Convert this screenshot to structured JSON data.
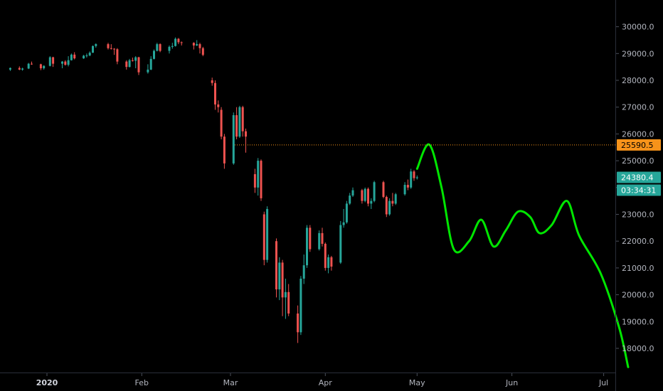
{
  "chart_data": {
    "type": "candlestick",
    "y_axis": {
      "ticks": [
        18000,
        19000,
        20000,
        21000,
        22000,
        23000,
        24000,
        25000,
        26000,
        27000,
        28000,
        29000,
        30000
      ],
      "tick_labels": [
        "18000.0",
        "19000.0",
        "20000.0",
        "21000.0",
        "22000.0",
        "23000.0",
        "24000.0",
        "25000.0",
        "26000.0",
        "27000.0",
        "28000.0",
        "29000.0",
        "30000.0"
      ],
      "range": [
        17100,
        30700
      ],
      "position": "right"
    },
    "x_axis": {
      "labels": [
        {
          "text": "2020",
          "date": "2020-01-01",
          "bold": true
        },
        {
          "text": "Feb",
          "date": "2020-02-01"
        },
        {
          "text": "Mar",
          "date": "2020-03-01"
        },
        {
          "text": "Apr",
          "date": "2020-04-01"
        },
        {
          "text": "May",
          "date": "2020-05-01"
        },
        {
          "text": "Jun",
          "date": "2020-06-01"
        },
        {
          "text": "Jul",
          "date": "2020-07-01"
        }
      ]
    },
    "price_line": {
      "value": 25590.5,
      "label": "25590.5",
      "style": "dotted",
      "color": "#f7931a"
    },
    "last_price": {
      "value": 24380.4,
      "label": "24380.4",
      "countdown": "03:34:31",
      "color": "#26a69a"
    },
    "colors": {
      "up": "#26a69a",
      "down": "#ef5350",
      "projection": "#00e600",
      "background": "#000000",
      "axis_text": "#b2b5be"
    },
    "candles": [
      [
        "2019-12-20",
        28400,
        28480,
        28350,
        28460
      ],
      [
        "2019-12-23",
        28460,
        28520,
        28380,
        28400
      ],
      [
        "2019-12-24",
        28400,
        28470,
        28360,
        28440
      ],
      [
        "2019-12-26",
        28440,
        28650,
        28420,
        28620
      ],
      [
        "2019-12-27",
        28620,
        28700,
        28580,
        28600
      ],
      [
        "2019-12-30",
        28600,
        28620,
        28380,
        28450
      ],
      [
        "2019-12-31",
        28450,
        28560,
        28400,
        28540
      ],
      [
        "2020-01-02",
        28540,
        28900,
        28520,
        28860
      ],
      [
        "2020-01-03",
        28860,
        28880,
        28500,
        28620
      ],
      [
        "2020-01-06",
        28620,
        28720,
        28450,
        28700
      ],
      [
        "2020-01-07",
        28700,
        28750,
        28550,
        28580
      ],
      [
        "2020-01-08",
        28580,
        28900,
        28520,
        28750
      ],
      [
        "2020-01-09",
        28750,
        29000,
        28740,
        28960
      ],
      [
        "2020-01-10",
        28960,
        29050,
        28780,
        28820
      ],
      [
        "2020-01-13",
        28820,
        28950,
        28800,
        28920
      ],
      [
        "2020-01-14",
        28920,
        29000,
        28850,
        28930
      ],
      [
        "2020-01-15",
        28930,
        29080,
        28900,
        29030
      ],
      [
        "2020-01-16",
        29030,
        29300,
        29020,
        29280
      ],
      [
        "2020-01-17",
        29280,
        29380,
        29220,
        29350
      ],
      [
        "2020-01-21",
        29350,
        29400,
        29150,
        29200
      ],
      [
        "2020-01-22",
        29200,
        29350,
        29150,
        29180
      ],
      [
        "2020-01-23",
        29180,
        29200,
        28950,
        29160
      ],
      [
        "2020-01-24",
        29160,
        29200,
        28600,
        28700
      ],
      [
        "2020-01-27",
        28700,
        28750,
        28400,
        28500
      ],
      [
        "2020-01-28",
        28500,
        28800,
        28480,
        28750
      ],
      [
        "2020-01-29",
        28750,
        28850,
        28700,
        28730
      ],
      [
        "2020-01-30",
        28730,
        28900,
        28450,
        28860
      ],
      [
        "2020-01-31",
        28860,
        28880,
        28200,
        28300
      ],
      [
        "2020-02-03",
        28300,
        28600,
        28250,
        28400
      ],
      [
        "2020-02-04",
        28400,
        28900,
        28380,
        28800
      ],
      [
        "2020-02-05",
        28800,
        29150,
        28780,
        29100
      ],
      [
        "2020-02-06",
        29100,
        29400,
        29080,
        29350
      ],
      [
        "2020-02-07",
        29350,
        29380,
        29050,
        29100
      ],
      [
        "2020-02-10",
        29100,
        29300,
        29000,
        29250
      ],
      [
        "2020-02-11",
        29250,
        29400,
        29180,
        29280
      ],
      [
        "2020-02-12",
        29280,
        29600,
        29260,
        29550
      ],
      [
        "2020-02-13",
        29550,
        29580,
        29350,
        29420
      ],
      [
        "2020-02-14",
        29420,
        29450,
        29300,
        29400
      ],
      [
        "2020-02-18",
        29400,
        29420,
        29150,
        29300
      ],
      [
        "2020-02-19",
        29300,
        29500,
        29280,
        29350
      ],
      [
        "2020-02-20",
        29350,
        29400,
        29000,
        29200
      ],
      [
        "2020-02-21",
        29200,
        29250,
        28900,
        28950
      ],
      [
        "2020-02-24",
        28000,
        28100,
        27800,
        27900
      ],
      [
        "2020-02-25",
        27900,
        28000,
        26900,
        27100
      ],
      [
        "2020-02-26",
        27100,
        27250,
        26800,
        27000
      ],
      [
        "2020-02-27",
        26900,
        27000,
        25800,
        25900
      ],
      [
        "2020-02-28",
        25900,
        26000,
        24700,
        24900
      ],
      [
        "2020-03-02",
        24900,
        26800,
        24850,
        26700
      ],
      [
        "2020-03-03",
        26700,
        27000,
        25800,
        25900
      ],
      [
        "2020-03-04",
        25900,
        27050,
        25850,
        27000
      ],
      [
        "2020-03-05",
        27000,
        27050,
        25900,
        26100
      ],
      [
        "2020-03-06",
        26100,
        26200,
        25300,
        25900
      ],
      [
        "2020-03-09",
        24500,
        24700,
        23800,
        24000
      ],
      [
        "2020-03-10",
        24000,
        25100,
        23700,
        25000
      ],
      [
        "2020-03-11",
        25000,
        25050,
        23500,
        23600
      ],
      [
        "2020-03-12",
        23000,
        23100,
        21100,
        21300
      ],
      [
        "2020-03-13",
        21300,
        23300,
        21200,
        23200
      ],
      [
        "2020-03-16",
        22000,
        22100,
        19900,
        20200
      ],
      [
        "2020-03-17",
        20200,
        21400,
        19800,
        21200
      ],
      [
        "2020-03-18",
        21200,
        21300,
        19200,
        19900
      ],
      [
        "2020-03-19",
        19900,
        20600,
        19100,
        20100
      ],
      [
        "2020-03-20",
        20100,
        20400,
        19200,
        19300
      ],
      [
        "2020-03-23",
        19300,
        19600,
        18200,
        18600
      ],
      [
        "2020-03-24",
        18600,
        20700,
        18500,
        20600
      ],
      [
        "2020-03-25",
        20600,
        21500,
        20400,
        21100
      ],
      [
        "2020-03-26",
        21100,
        22600,
        21000,
        22500
      ],
      [
        "2020-03-27",
        22500,
        22600,
        21600,
        21700
      ],
      [
        "2020-03-30",
        21700,
        22400,
        21650,
        22300
      ],
      [
        "2020-03-31",
        22300,
        22500,
        21800,
        21900
      ],
      [
        "2020-04-01",
        21900,
        21950,
        20900,
        21000
      ],
      [
        "2020-04-02",
        21000,
        21500,
        20800,
        21400
      ],
      [
        "2020-04-03",
        21400,
        21450,
        20900,
        21050
      ],
      [
        "2020-04-06",
        21200,
        22750,
        21150,
        22600
      ],
      [
        "2020-04-07",
        22600,
        23200,
        22500,
        22700
      ],
      [
        "2020-04-08",
        22700,
        23500,
        22650,
        23400
      ],
      [
        "2020-04-09",
        23400,
        23800,
        23350,
        23700
      ],
      [
        "2020-04-10",
        23700,
        24000,
        23650,
        23900
      ],
      [
        "2020-04-13",
        23900,
        23950,
        23400,
        23500
      ],
      [
        "2020-04-14",
        23500,
        24000,
        23450,
        23950
      ],
      [
        "2020-04-15",
        23950,
        24000,
        23300,
        23400
      ],
      [
        "2020-04-16",
        23400,
        23600,
        23200,
        23500
      ],
      [
        "2020-04-17",
        23500,
        24250,
        23450,
        24200
      ],
      [
        "2020-04-20",
        24200,
        24250,
        23600,
        23650
      ],
      [
        "2020-04-21",
        23650,
        23700,
        22900,
        23000
      ],
      [
        "2020-04-22",
        23000,
        23600,
        22950,
        23500
      ],
      [
        "2020-04-23",
        23500,
        23800,
        23300,
        23400
      ],
      [
        "2020-04-24",
        23400,
        23800,
        23350,
        23750
      ],
      [
        "2020-04-27",
        23750,
        24200,
        23700,
        24100
      ],
      [
        "2020-04-28",
        24100,
        24300,
        23900,
        24000
      ],
      [
        "2020-04-29",
        24000,
        24700,
        23950,
        24600
      ],
      [
        "2020-04-30",
        24600,
        24650,
        24250,
        24350
      ],
      [
        "2020-05-01",
        24350,
        24450,
        24300,
        24380
      ]
    ],
    "projection_path": [
      [
        "2020-05-01",
        24700
      ],
      [
        "2020-05-05",
        25600
      ],
      [
        "2020-05-09",
        24000
      ],
      [
        "2020-05-13",
        21700
      ],
      [
        "2020-05-18",
        22000
      ],
      [
        "2020-05-22",
        22800
      ],
      [
        "2020-05-26",
        21800
      ],
      [
        "2020-05-30",
        22400
      ],
      [
        "2020-06-03",
        23100
      ],
      [
        "2020-06-07",
        22900
      ],
      [
        "2020-06-10",
        22300
      ],
      [
        "2020-06-14",
        22600
      ],
      [
        "2020-06-19",
        23500
      ],
      [
        "2020-06-23",
        22200
      ],
      [
        "2020-06-30",
        20800
      ],
      [
        "2020-07-06",
        18800
      ],
      [
        "2020-07-09",
        17300
      ]
    ]
  }
}
